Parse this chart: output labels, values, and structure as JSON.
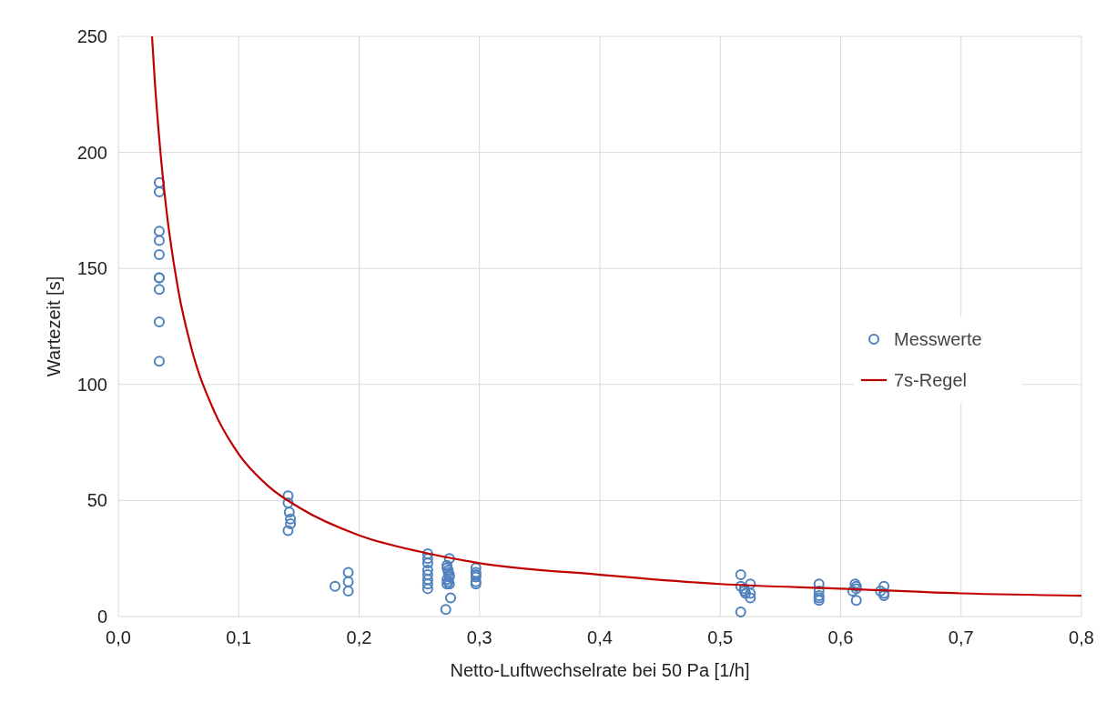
{
  "chart_data": {
    "type": "scatter",
    "xlabel": "Netto-Luftwechselrate bei 50 Pa [1/h]",
    "ylabel": "Wartezeit [s]",
    "xlim": [
      0,
      0.8
    ],
    "xticks": [
      {
        "value": 0,
        "label": "0,0"
      },
      {
        "value": 0.1,
        "label": "0,1"
      },
      {
        "value": 0.2,
        "label": "0,2"
      },
      {
        "value": 0.3,
        "label": "0,3"
      },
      {
        "value": 0.4,
        "label": "0,4"
      },
      {
        "value": 0.5,
        "label": "0,5"
      },
      {
        "value": 0.6,
        "label": "0,6"
      },
      {
        "value": 0.7,
        "label": "0,7"
      },
      {
        "value": 0.8,
        "label": "0,8"
      }
    ],
    "ylim": [
      0,
      250
    ],
    "yticks": [
      0,
      50,
      100,
      150,
      200,
      250
    ],
    "grid": true,
    "legend": "right",
    "series": [
      {
        "name": "Messwerte",
        "marker": "circle",
        "color": "#4f81bd",
        "x": [
          0.034,
          0.034,
          0.034,
          0.034,
          0.034,
          0.034,
          0.034,
          0.034,
          0.034,
          0.034,
          0.141,
          0.141,
          0.142,
          0.143,
          0.143,
          0.141,
          0.18,
          0.191,
          0.191,
          0.191,
          0.257,
          0.257,
          0.257,
          0.257,
          0.257,
          0.257,
          0.257,
          0.257,
          0.275,
          0.273,
          0.273,
          0.274,
          0.274,
          0.275,
          0.275,
          0.273,
          0.274,
          0.273,
          0.275,
          0.276,
          0.272,
          0.297,
          0.297,
          0.297,
          0.297,
          0.297,
          0.297,
          0.517,
          0.517,
          0.517,
          0.52,
          0.52,
          0.521,
          0.525,
          0.525,
          0.525,
          0.582,
          0.582,
          0.582,
          0.582,
          0.582,
          0.612,
          0.613,
          0.613,
          0.613,
          0.61,
          0.633,
          0.636,
          0.636,
          0.636
        ],
        "values": [
          187,
          183,
          166,
          162,
          156,
          146,
          146,
          141,
          127,
          110,
          52,
          49,
          45,
          42,
          40,
          37,
          13,
          19,
          15,
          11,
          27,
          25,
          23,
          20,
          18,
          16,
          14,
          12,
          25,
          22,
          21,
          20,
          19,
          18,
          17,
          16,
          15,
          14,
          14,
          8,
          3,
          21,
          19,
          18,
          17,
          15,
          14,
          18,
          13,
          2,
          12,
          11,
          10,
          14,
          10,
          8,
          14,
          11,
          9,
          8,
          7,
          14,
          13,
          12,
          7,
          11,
          11,
          13,
          10,
          9
        ]
      },
      {
        "name": "7s-Regel",
        "type": "line",
        "line_style": "solid",
        "color": "#c00000",
        "x": [
          0.028,
          0.03,
          0.035,
          0.04,
          0.05,
          0.06,
          0.08,
          0.1,
          0.125,
          0.15,
          0.2,
          0.25,
          0.3,
          0.4,
          0.5,
          0.6,
          0.7,
          0.8
        ],
        "values": [
          250,
          233,
          200,
          175,
          140,
          117,
          88,
          70,
          56,
          47,
          35,
          28,
          23,
          18,
          14,
          12,
          10,
          9
        ]
      }
    ]
  }
}
